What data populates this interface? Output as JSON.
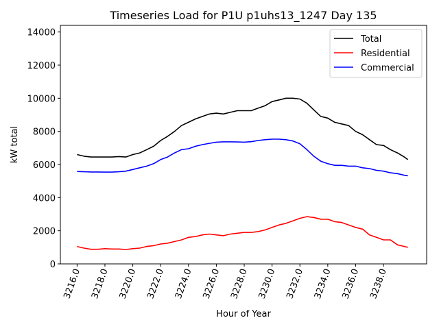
{
  "chart_data": {
    "type": "line",
    "title": "Timeseries Load for P1U p1uhs13_1247  Day 135",
    "xlabel": "Hour of Year",
    "ylabel": "kW total",
    "xlim": [
      3214.8,
      3241.1
    ],
    "ylim": [
      0,
      14400
    ],
    "xticks": [
      3216,
      3218,
      3220,
      3222,
      3224,
      3226,
      3228,
      3230,
      3232,
      3234,
      3236,
      3238
    ],
    "xtick_labels": [
      "3216.0",
      "3218.0",
      "3220.0",
      "3222.0",
      "3224.0",
      "3226.0",
      "3228.0",
      "3230.0",
      "3232.0",
      "3234.0",
      "3236.0",
      "3238.0"
    ],
    "yticks": [
      0,
      2000,
      4000,
      6000,
      8000,
      10000,
      12000,
      14000
    ],
    "ytick_labels": [
      "0",
      "2000",
      "4000",
      "6000",
      "8000",
      "10000",
      "12000",
      "14000"
    ],
    "legend_position": "top-right",
    "x": [
      3216,
      3216.5,
      3217,
      3217.5,
      3218,
      3218.5,
      3219,
      3219.5,
      3220,
      3220.5,
      3221,
      3221.5,
      3222,
      3222.5,
      3223,
      3223.5,
      3224,
      3224.5,
      3225,
      3225.5,
      3226,
      3226.5,
      3227,
      3227.5,
      3228,
      3228.5,
      3229,
      3229.5,
      3230,
      3230.5,
      3231,
      3231.5,
      3232,
      3232.5,
      3233,
      3233.5,
      3234,
      3234.5,
      3235,
      3235.5,
      3236,
      3236.5,
      3237,
      3237.5,
      3238,
      3238.5,
      3239,
      3239.5,
      3239.75
    ],
    "series": [
      {
        "name": "Total",
        "color": "#000000",
        "values": [
          6600,
          6500,
          6450,
          6450,
          6450,
          6450,
          6480,
          6450,
          6600,
          6700,
          6900,
          7100,
          7450,
          7700,
          8000,
          8350,
          8550,
          8750,
          8900,
          9050,
          9100,
          9050,
          9150,
          9250,
          9250,
          9250,
          9400,
          9550,
          9800,
          9900,
          10000,
          10000,
          9950,
          9700,
          9300,
          8900,
          8800,
          8550,
          8450,
          8350,
          8000,
          7800,
          7500,
          7200,
          7150,
          6900,
          6700,
          6450,
          6300
        ]
      },
      {
        "name": "Residential",
        "color": "#ff0000",
        "values": [
          1050,
          950,
          880,
          880,
          920,
          900,
          900,
          870,
          920,
          950,
          1050,
          1100,
          1200,
          1250,
          1350,
          1450,
          1600,
          1650,
          1750,
          1800,
          1750,
          1700,
          1800,
          1850,
          1900,
          1900,
          1950,
          2050,
          2200,
          2350,
          2450,
          2600,
          2750,
          2850,
          2800,
          2700,
          2700,
          2550,
          2500,
          2350,
          2200,
          2100,
          1750,
          1600,
          1450,
          1450,
          1150,
          1050,
          1000
        ]
      },
      {
        "name": "Commercial",
        "color": "#0000ff",
        "values": [
          5580,
          5560,
          5550,
          5550,
          5540,
          5540,
          5560,
          5600,
          5700,
          5800,
          5900,
          6050,
          6300,
          6450,
          6700,
          6900,
          6950,
          7100,
          7200,
          7280,
          7350,
          7370,
          7370,
          7360,
          7350,
          7380,
          7450,
          7500,
          7530,
          7530,
          7500,
          7420,
          7250,
          6900,
          6500,
          6200,
          6050,
          5950,
          5950,
          5900,
          5900,
          5800,
          5750,
          5650,
          5600,
          5500,
          5450,
          5350,
          5320
        ]
      }
    ]
  }
}
